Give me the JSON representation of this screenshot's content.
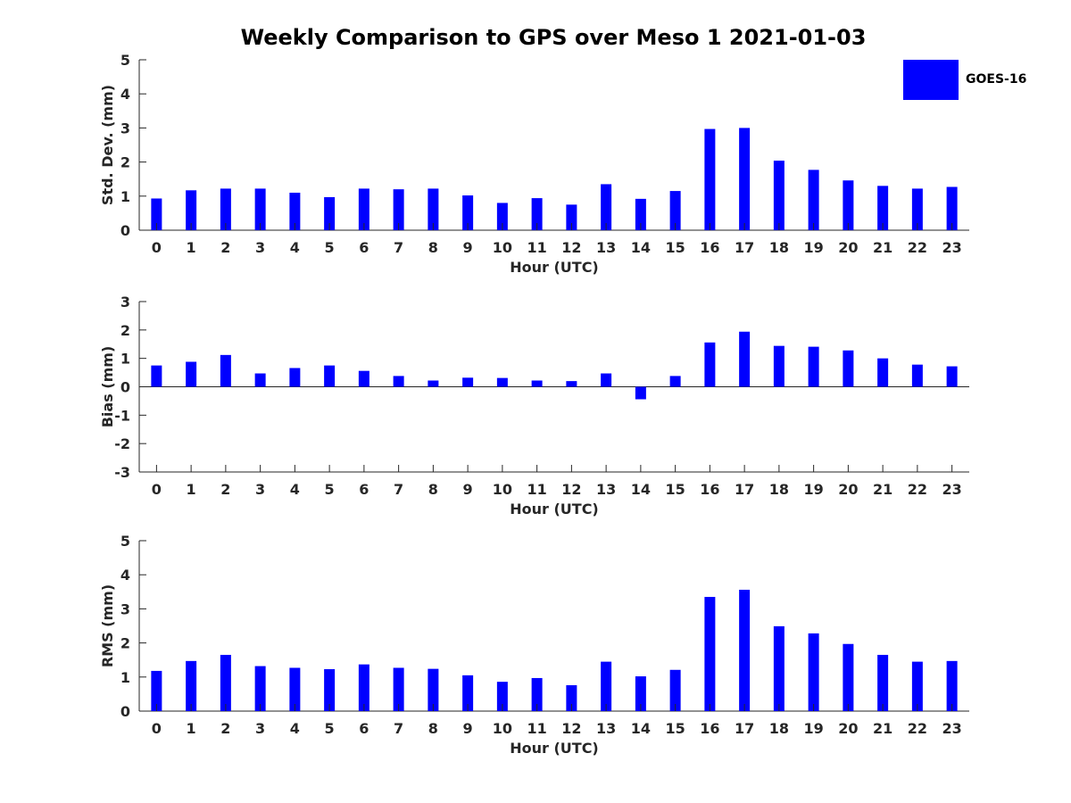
{
  "title": "Weekly Comparison to GPS over Meso 1 2021-01-03",
  "legend": {
    "label": "GOES-16",
    "color": "#0000ff"
  },
  "chart_data": [
    {
      "type": "bar",
      "title": "Weekly Comparison to GPS over Meso 1 2021-01-03",
      "xlabel": "Hour (UTC)",
      "ylabel": "Std. Dev. (mm)",
      "ylim": [
        0,
        5
      ],
      "yticks": [
        0,
        1,
        2,
        3,
        4,
        5
      ],
      "categories": [
        0,
        1,
        2,
        3,
        4,
        5,
        6,
        7,
        8,
        9,
        10,
        11,
        12,
        13,
        14,
        15,
        16,
        17,
        18,
        19,
        20,
        21,
        22,
        23
      ],
      "series": [
        {
          "name": "GOES-16",
          "color": "#0000ff",
          "values": [
            0.93,
            1.17,
            1.22,
            1.22,
            1.1,
            0.97,
            1.22,
            1.2,
            1.22,
            1.02,
            0.8,
            0.94,
            0.75,
            1.35,
            0.92,
            1.15,
            2.97,
            3.0,
            2.04,
            1.77,
            1.46,
            1.3,
            1.22,
            1.27
          ]
        }
      ],
      "legend": "top-right",
      "grid": false
    },
    {
      "type": "bar",
      "xlabel": "Hour (UTC)",
      "ylabel": "Bias (mm)",
      "ylim": [
        -3,
        3
      ],
      "yticks": [
        -3,
        -2,
        -1,
        0,
        1,
        2,
        3
      ],
      "categories": [
        0,
        1,
        2,
        3,
        4,
        5,
        6,
        7,
        8,
        9,
        10,
        11,
        12,
        13,
        14,
        15,
        16,
        17,
        18,
        19,
        20,
        21,
        22,
        23
      ],
      "series": [
        {
          "name": "GOES-16",
          "color": "#0000ff",
          "values": [
            0.75,
            0.88,
            1.12,
            0.47,
            0.66,
            0.75,
            0.56,
            0.38,
            0.22,
            0.32,
            0.31,
            0.22,
            0.2,
            0.47,
            -0.44,
            0.38,
            1.56,
            1.94,
            1.44,
            1.41,
            1.28,
            1.0,
            0.78,
            0.72
          ]
        }
      ],
      "grid": false
    },
    {
      "type": "bar",
      "xlabel": "Hour (UTC)",
      "ylabel": "RMS (mm)",
      "ylim": [
        0,
        5
      ],
      "yticks": [
        0,
        1,
        2,
        3,
        4,
        5
      ],
      "categories": [
        0,
        1,
        2,
        3,
        4,
        5,
        6,
        7,
        8,
        9,
        10,
        11,
        12,
        13,
        14,
        15,
        16,
        17,
        18,
        19,
        20,
        21,
        22,
        23
      ],
      "series": [
        {
          "name": "GOES-16",
          "color": "#0000ff",
          "values": [
            1.18,
            1.47,
            1.65,
            1.32,
            1.27,
            1.23,
            1.37,
            1.27,
            1.24,
            1.05,
            0.86,
            0.97,
            0.76,
            1.45,
            1.02,
            1.21,
            3.35,
            3.56,
            2.49,
            2.28,
            1.97,
            1.65,
            1.45,
            1.47
          ]
        }
      ],
      "grid": false
    }
  ]
}
